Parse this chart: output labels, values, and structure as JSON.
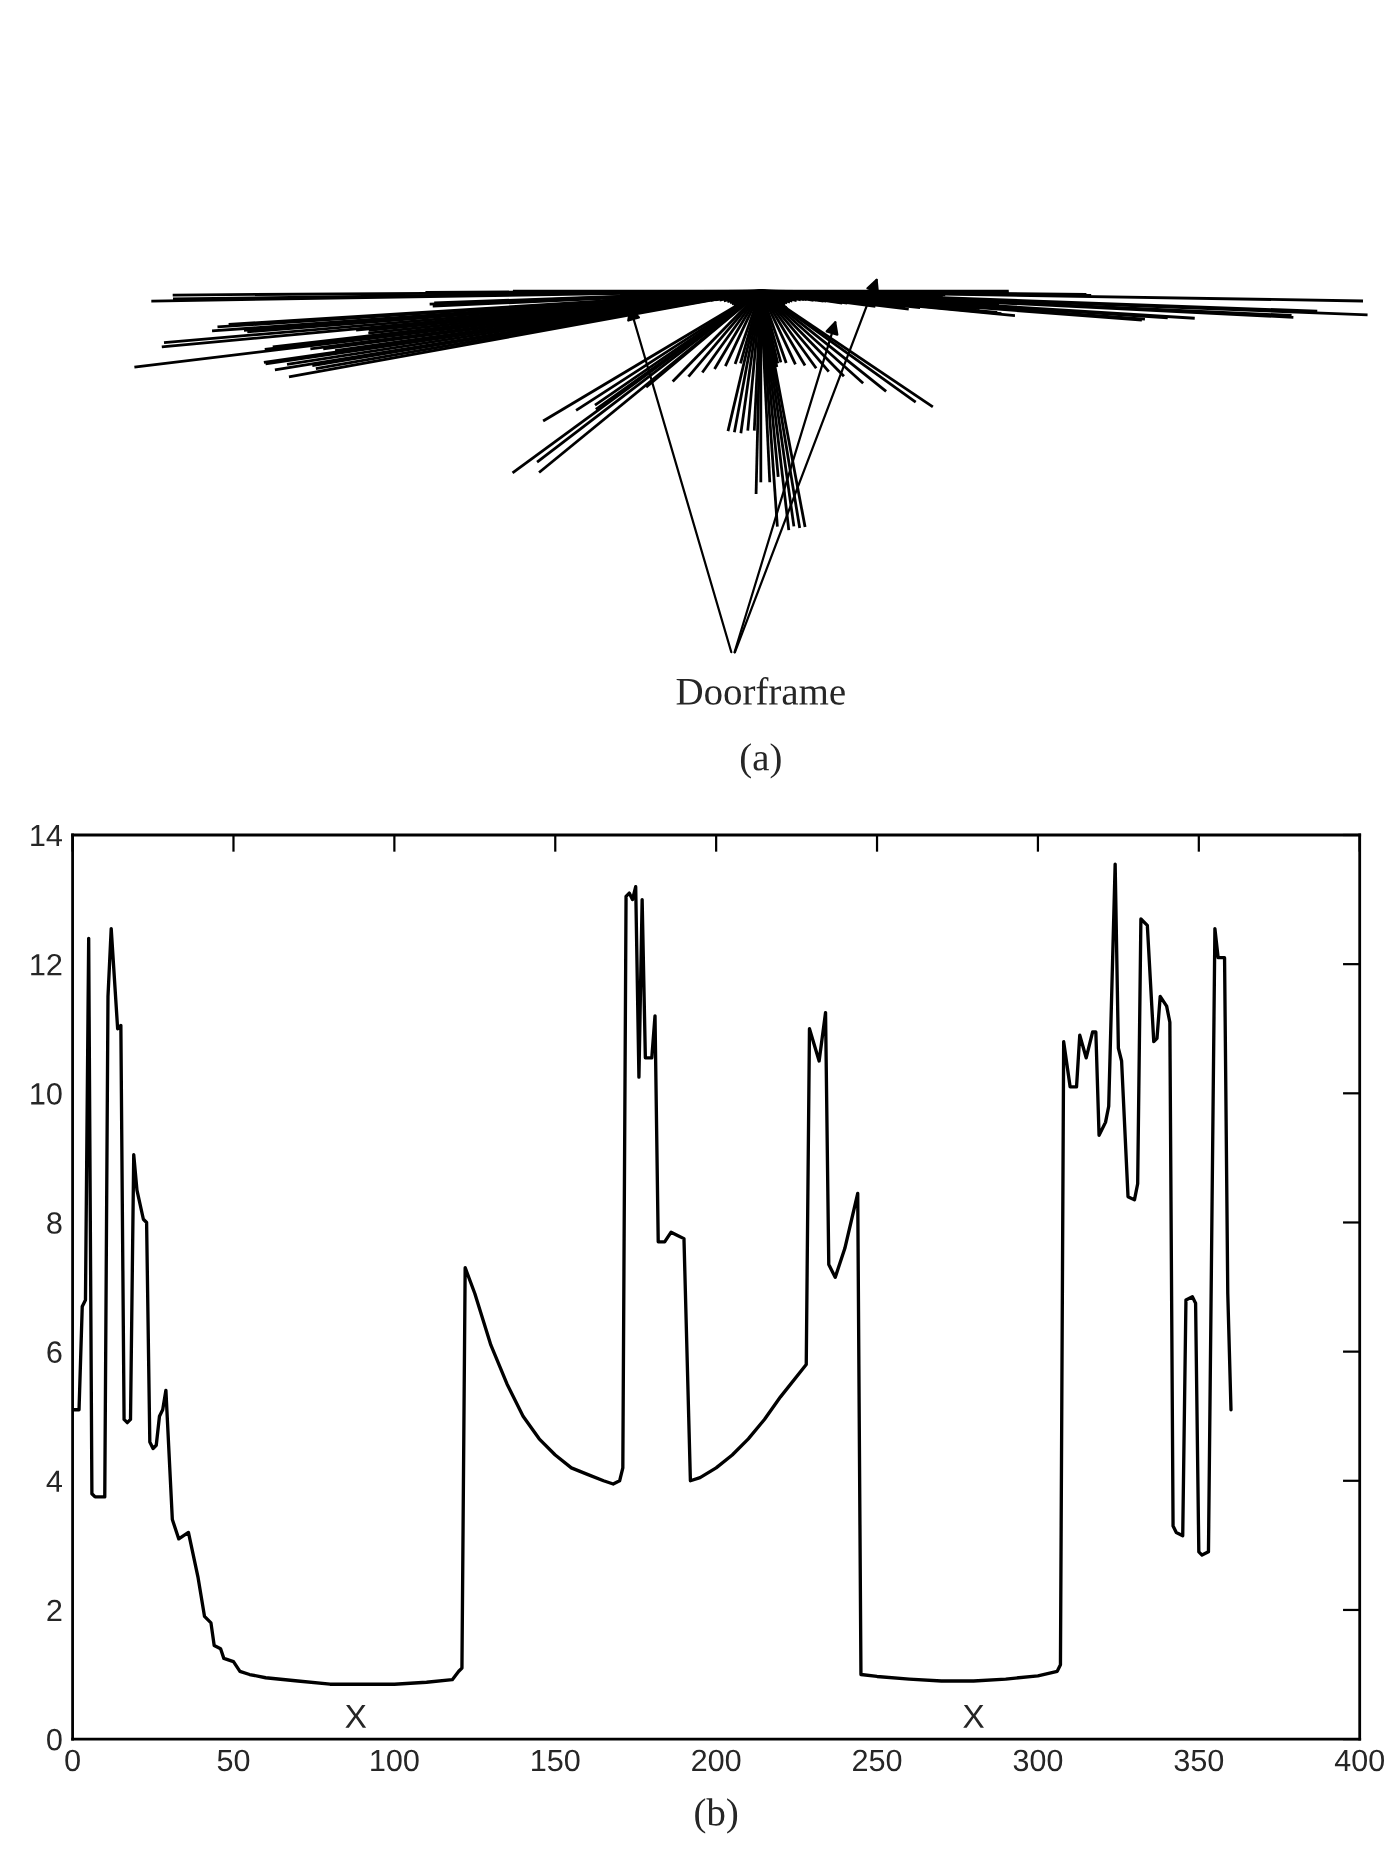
{
  "chart_data": [
    {
      "type": "other",
      "annotations": [
        "Doorframe",
        "(a)"
      ]
    },
    {
      "type": "line",
      "annotations": [
        "X",
        "X",
        "(b)"
      ],
      "xlim": [
        0,
        400
      ],
      "ylim": [
        0,
        14
      ],
      "xticks": [
        0,
        50,
        100,
        150,
        200,
        250,
        300,
        350,
        400
      ],
      "yticks": [
        0,
        2,
        4,
        6,
        8,
        10,
        12,
        14
      ],
      "grid": false,
      "legend": false,
      "series": [
        {
          "color": "#000000",
          "x": [
            0,
            2,
            3,
            4,
            5,
            6,
            7,
            10,
            11,
            12,
            14,
            15,
            16,
            17,
            18,
            19,
            20,
            22,
            23,
            24,
            25,
            26,
            27,
            28,
            29,
            31,
            33,
            36,
            39,
            41,
            43,
            44,
            46,
            47,
            50,
            52,
            55,
            60,
            70,
            80,
            90,
            100,
            110,
            118,
            120,
            121,
            122,
            125,
            130,
            135,
            140,
            145,
            150,
            155,
            160,
            165,
            168,
            170,
            171,
            172,
            173,
            174,
            175,
            176,
            177,
            178,
            180,
            181,
            182,
            184,
            186,
            188,
            190,
            192,
            195,
            200,
            205,
            210,
            215,
            220,
            228,
            229,
            232,
            234,
            235,
            237,
            240,
            244,
            245,
            250,
            260,
            270,
            280,
            290,
            300,
            306,
            307,
            308,
            310,
            312,
            313,
            315,
            317,
            318,
            319,
            321,
            322,
            324,
            325,
            326,
            328,
            330,
            331,
            332,
            334,
            336,
            337,
            338,
            340,
            341,
            342,
            343,
            345,
            346,
            348,
            349,
            350,
            351,
            353,
            355,
            356,
            358,
            359,
            360
          ],
          "values": [
            5.1,
            5.1,
            6.7,
            6.8,
            12.4,
            3.8,
            3.75,
            3.75,
            11.5,
            12.55,
            11,
            11.05,
            4.95,
            4.9,
            4.95,
            9.05,
            8.5,
            8.05,
            8,
            4.6,
            4.5,
            4.55,
            5,
            5.1,
            5.4,
            3.4,
            3.1,
            3.2,
            2.5,
            1.9,
            1.8,
            1.45,
            1.4,
            1.25,
            1.2,
            1.05,
            1.0,
            0.95,
            0.9,
            0.85,
            0.85,
            0.85,
            0.88,
            0.92,
            1.05,
            1.1,
            7.3,
            6.9,
            6.1,
            5.5,
            5.0,
            4.65,
            4.4,
            4.2,
            4.1,
            4.0,
            3.95,
            4.0,
            4.2,
            13.05,
            13.1,
            13.0,
            13.2,
            10.25,
            13.0,
            10.55,
            10.55,
            11.2,
            7.7,
            7.7,
            7.85,
            7.8,
            7.75,
            4.0,
            4.05,
            4.2,
            4.4,
            4.65,
            4.95,
            5.3,
            5.8,
            11.0,
            10.5,
            11.25,
            7.35,
            7.15,
            7.6,
            8.45,
            1.0,
            0.97,
            0.93,
            0.9,
            0.9,
            0.93,
            0.98,
            1.05,
            1.15,
            10.8,
            10.1,
            10.1,
            10.9,
            10.55,
            10.95,
            10.95,
            9.35,
            9.55,
            9.8,
            13.55,
            10.7,
            10.5,
            8.4,
            8.35,
            8.6,
            12.7,
            12.6,
            10.8,
            10.85,
            11.5,
            11.35,
            11.1,
            3.3,
            3.2,
            3.15,
            6.8,
            6.85,
            6.75,
            2.9,
            2.85,
            2.9,
            12.55,
            12.1,
            12.1,
            6.9,
            5.1
          ]
        }
      ]
    }
  ]
}
